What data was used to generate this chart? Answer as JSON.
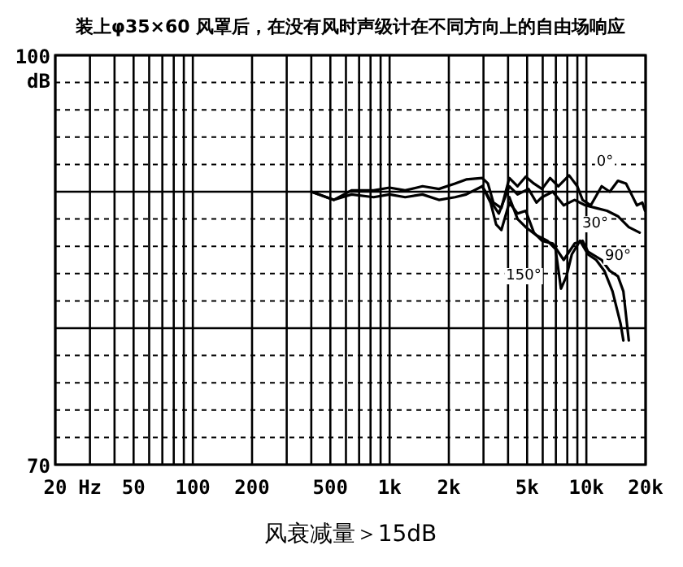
{
  "chart_data": {
    "type": "line",
    "title": "装上φ35×60 风罩后，在没有风时声级计在不同方向上的自由场响应",
    "xlabel": "风衰减量＞15dB",
    "ylabel": "dB",
    "log": "x",
    "grid": true,
    "xlim": [
      20,
      20000
    ],
    "ylim": [
      70,
      100
    ],
    "xticks": [
      {
        "value": 20,
        "label": "20"
      },
      {
        "value": 30,
        "label": "Hz"
      },
      {
        "value": 40,
        "label": null
      },
      {
        "value": 50,
        "label": "50"
      },
      {
        "value": 60,
        "label": null
      },
      {
        "value": 70,
        "label": null
      },
      {
        "value": 80,
        "label": null
      },
      {
        "value": 90,
        "label": null
      },
      {
        "value": 100,
        "label": "100"
      },
      {
        "value": 200,
        "label": "200"
      },
      {
        "value": 300,
        "label": null
      },
      {
        "value": 400,
        "label": null
      },
      {
        "value": 500,
        "label": "500"
      },
      {
        "value": 600,
        "label": null
      },
      {
        "value": 700,
        "label": null
      },
      {
        "value": 800,
        "label": null
      },
      {
        "value": 900,
        "label": null
      },
      {
        "value": 1000,
        "label": "1k"
      },
      {
        "value": 2000,
        "label": "2k"
      },
      {
        "value": 3000,
        "label": null
      },
      {
        "value": 4000,
        "label": null
      },
      {
        "value": 5000,
        "label": "5k"
      },
      {
        "value": 6000,
        "label": null
      },
      {
        "value": 7000,
        "label": null
      },
      {
        "value": 8000,
        "label": null
      },
      {
        "value": 9000,
        "label": null
      },
      {
        "value": 10000,
        "label": "10k"
      },
      {
        "value": 20000,
        "label": "20k"
      }
    ],
    "yticks": [
      70,
      {
        "value": 72,
        "label": null
      },
      {
        "value": 74,
        "label": null
      },
      {
        "value": 76,
        "label": null
      },
      {
        "value": 78,
        "label": null
      },
      {
        "value": 80,
        "label": null
      },
      {
        "value": 82,
        "label": null
      },
      {
        "value": 84,
        "label": null
      },
      {
        "value": 86,
        "label": null
      },
      {
        "value": 88,
        "label": null
      },
      {
        "value": 90,
        "label": null
      },
      {
        "value": 92,
        "label": null
      },
      {
        "value": 94,
        "label": null
      },
      {
        "value": 96,
        "label": null
      },
      {
        "value": 98,
        "label": null
      },
      100
    ],
    "series": [
      {
        "name": "0°",
        "color": "#000000",
        "x": [
          400,
          520,
          640,
          830,
          1000,
          1200,
          1470,
          1780,
          2150,
          2450,
          2960,
          3160,
          3370,
          3700,
          4060,
          4470,
          4920,
          5410,
          5950,
          6540,
          7200,
          8170,
          8990,
          9570,
          10530,
          11960,
          13150,
          14470,
          15910,
          16960,
          18070,
          19250,
          19870
        ],
        "values": [
          90,
          89.4,
          90.1,
          90.1,
          90.3,
          90.1,
          90.4,
          90.2,
          90.6,
          90.9,
          91.0,
          90.6,
          89.2,
          88.8,
          91.0,
          90.4,
          91.1,
          90.6,
          90.2,
          91.0,
          90.4,
          91.2,
          90.4,
          89.4,
          89.0,
          90.4,
          90.0,
          90.8,
          90.6,
          89.8,
          89.0,
          89.2,
          88.6
        ]
      },
      {
        "name": "30°",
        "color": "#000000",
        "x": [
          400,
          520,
          640,
          830,
          1000,
          1200,
          1470,
          1780,
          2150,
          2450,
          2960,
          3370,
          3590,
          4060,
          4470,
          5080,
          5580,
          5950,
          6750,
          7670,
          8710,
          9880,
          11220,
          12740,
          14470,
          16430,
          18660
        ],
        "values": [
          90,
          89.4,
          89.8,
          89.6,
          89.8,
          89.6,
          89.8,
          89.4,
          89.6,
          89.8,
          90.4,
          89.0,
          88.4,
          90.4,
          89.8,
          90.2,
          89.2,
          89.6,
          90.0,
          89.0,
          89.4,
          89.0,
          88.8,
          88.6,
          88.2,
          87.4,
          87.0
        ]
      },
      {
        "name": "90°",
        "color": "#000000",
        "x": [
          2960,
          3260,
          3480,
          3700,
          4060,
          4470,
          4920,
          5410,
          5950,
          6750,
          7670,
          8710,
          9570,
          10200,
          11960,
          13150,
          14470,
          15420,
          16430
        ],
        "values": [
          90.4,
          89.2,
          87.6,
          87.2,
          89.2,
          88.4,
          88.6,
          87.0,
          86.4,
          86.2,
          85.0,
          86.2,
          86.4,
          85.6,
          85.0,
          84.2,
          83.8,
          82.7,
          79.1
        ]
      },
      {
        "name": "150°",
        "color": "#000000",
        "x": [
          4060,
          4470,
          4920,
          5580,
          6340,
          6970,
          7430,
          7920,
          8430,
          9280,
          10200,
          11220,
          12340,
          13580,
          14940,
          15420
        ],
        "values": [
          89.6,
          88.0,
          87.4,
          86.8,
          86.4,
          85.8,
          82.9,
          83.8,
          85.4,
          86.4,
          85.4,
          85.0,
          84.2,
          82.7,
          80.3,
          79.1
        ]
      }
    ]
  }
}
